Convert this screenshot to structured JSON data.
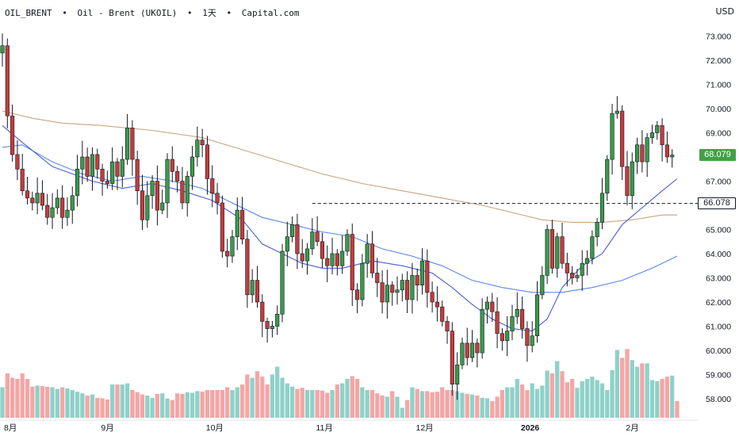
{
  "header": {
    "symbol": "OIL_BRENT",
    "name": "Oil - Brent (UKOIL)",
    "interval": "1天",
    "source": "Capital.com",
    "separator": "•"
  },
  "currency": "USD",
  "colors": {
    "up_candle": "#3a9a4a",
    "down_candle": "#c43c3c",
    "up_volume": "#8fd1c8",
    "down_volume": "#f4a6a6",
    "ma_fast": "#4a5fd0",
    "ma_mid": "#5a88e6",
    "ma_slow": "#c9a47e",
    "last_price_tag": "#43a047",
    "level_tag": "#131722"
  },
  "last_price_label": "68.079",
  "level_label": "66.078",
  "chart_data": {
    "type": "candlestick",
    "ylim": [
      57.6,
      73.3
    ],
    "y_ticks": [
      "73.000",
      "72.000",
      "71.000",
      "70.000",
      "69.000",
      "68.000",
      "67.000",
      "66.000",
      "65.000",
      "64.000",
      "63.000",
      "62.000",
      "61.000",
      "60.000",
      "59.000",
      "58.000"
    ],
    "x_labels": [
      {
        "label": "8月",
        "index": 0
      },
      {
        "label": "9月",
        "index": 21
      },
      {
        "label": "10月",
        "index": 42
      },
      {
        "label": "11月",
        "index": 64
      },
      {
        "label": "12月",
        "index": 84
      },
      {
        "label": "2026",
        "index": 105
      },
      {
        "label": "2月",
        "index": 126
      }
    ],
    "level_line": 66.078,
    "last_price": 68.079,
    "closes": [
      72.6,
      69.7,
      68.1,
      67.5,
      66.6,
      66.3,
      66.1,
      66.5,
      66.0,
      65.5,
      65.9,
      66.3,
      65.5,
      65.8,
      66.4,
      67.5,
      68.0,
      67.2,
      68.1,
      67.5,
      67.0,
      66.9,
      67.8,
      67.2,
      67.9,
      69.2,
      67.9,
      66.6,
      65.4,
      66.4,
      67.0,
      65.8,
      66.1,
      67.9,
      67.4,
      67.0,
      66.1,
      67.2,
      68.0,
      68.7,
      68.5,
      67.1,
      66.5,
      66.1,
      64.1,
      63.9,
      64.7,
      65.8,
      64.6,
      62.3,
      62.9,
      62.0,
      61.2,
      60.9,
      61.0,
      61.5,
      64.1,
      64.7,
      65.2,
      64.0,
      63.7,
      64.2,
      64.9,
      64.5,
      63.8,
      63.5,
      64.0,
      63.5,
      64.1,
      64.8,
      62.5,
      62.1,
      63.6,
      64.4,
      63.2,
      62.8,
      62.0,
      62.7,
      62.4,
      62.5,
      62.9,
      62.1,
      63.1,
      62.7,
      63.7,
      62.4,
      62.0,
      61.8,
      61.2,
      60.8,
      58.6,
      59.4,
      60.3,
      59.7,
      60.3,
      59.9,
      61.7,
      62.0,
      61.6,
      60.7,
      60.4,
      60.8,
      61.4,
      61.7,
      60.9,
      60.2,
      60.6,
      62.3,
      63.1,
      65.0,
      63.4,
      64.7,
      63.6,
      63.2,
      63.0,
      63.1,
      63.6,
      63.8,
      64.7,
      65.3,
      66.5,
      67.9,
      69.8,
      69.9,
      67.6,
      66.4,
      67.8,
      68.5,
      67.8,
      68.8,
      69.0,
      69.3,
      68.5,
      68.0,
      68.079
    ],
    "volume_relative": [
      0.55,
      0.8,
      0.72,
      0.7,
      0.8,
      0.7,
      0.56,
      0.58,
      0.57,
      0.56,
      0.55,
      0.52,
      0.55,
      0.53,
      0.5,
      0.47,
      0.44,
      0.4,
      0.42,
      0.36,
      0.35,
      0.33,
      0.6,
      0.6,
      0.6,
      0.62,
      0.5,
      0.46,
      0.42,
      0.4,
      0.36,
      0.43,
      0.44,
      0.35,
      0.32,
      0.44,
      0.43,
      0.46,
      0.45,
      0.48,
      0.47,
      0.5,
      0.5,
      0.5,
      0.5,
      0.55,
      0.5,
      0.55,
      0.6,
      0.78,
      0.72,
      0.84,
      0.74,
      0.6,
      0.78,
      0.92,
      0.72,
      0.62,
      0.56,
      0.52,
      0.54,
      0.5,
      0.5,
      0.5,
      0.49,
      0.45,
      0.5,
      0.6,
      0.62,
      0.7,
      0.75,
      0.7,
      0.55,
      0.5,
      0.5,
      0.44,
      0.4,
      0.38,
      0.48,
      0.38,
      0.18,
      0.32,
      0.55,
      0.52,
      0.48,
      0.48,
      0.46,
      0.47,
      0.55,
      0.5,
      0.5,
      0.48,
      0.45,
      0.43,
      0.42,
      0.4,
      0.36,
      0.35,
      0.3,
      0.38,
      0.5,
      0.55,
      0.55,
      0.7,
      0.6,
      0.5,
      0.62,
      0.52,
      0.58,
      0.85,
      0.8,
      1.02,
      0.84,
      0.64,
      0.7,
      0.54,
      0.66,
      0.7,
      0.74,
      0.68,
      0.62,
      0.5,
      0.86,
      1.22,
      1.08,
      1.24,
      1.04,
      0.92,
      0.98,
      0.98,
      0.68,
      0.66,
      0.7,
      0.74,
      0.76,
      0.3
    ],
    "ma_fast": [
      [
        0,
        69.3
      ],
      [
        4,
        68.6
      ],
      [
        10,
        67.6
      ],
      [
        18,
        67.0
      ],
      [
        24,
        66.7
      ],
      [
        30,
        66.9
      ],
      [
        36,
        66.6
      ],
      [
        42,
        66.2
      ],
      [
        48,
        65.4
      ],
      [
        52,
        64.4
      ],
      [
        56,
        64.0
      ],
      [
        60,
        63.6
      ],
      [
        64,
        63.4
      ],
      [
        68,
        63.4
      ],
      [
        74,
        63.7
      ],
      [
        80,
        63.5
      ],
      [
        86,
        63.2
      ],
      [
        90,
        62.6
      ],
      [
        94,
        61.9
      ],
      [
        98,
        61.3
      ],
      [
        102,
        60.9
      ],
      [
        106,
        60.8
      ],
      [
        109,
        61.3
      ],
      [
        112,
        62.6
      ],
      [
        116,
        63.5
      ],
      [
        120,
        64.0
      ],
      [
        124,
        65.2
      ],
      [
        128,
        65.9
      ],
      [
        132,
        66.6
      ],
      [
        135,
        67.1
      ]
    ],
    "ma_mid": [
      [
        0,
        68.4
      ],
      [
        4,
        68.5
      ],
      [
        10,
        67.8
      ],
      [
        16,
        67.3
      ],
      [
        22,
        67.0
      ],
      [
        28,
        67.2
      ],
      [
        34,
        67.0
      ],
      [
        40,
        66.7
      ],
      [
        46,
        66.1
      ],
      [
        52,
        65.5
      ],
      [
        58,
        65.2
      ],
      [
        64,
        64.9
      ],
      [
        70,
        64.7
      ],
      [
        76,
        64.2
      ],
      [
        82,
        63.9
      ],
      [
        88,
        63.5
      ],
      [
        94,
        62.9
      ],
      [
        100,
        62.6
      ],
      [
        106,
        62.4
      ],
      [
        112,
        62.4
      ],
      [
        118,
        62.6
      ],
      [
        124,
        62.9
      ],
      [
        130,
        63.4
      ],
      [
        135,
        63.9
      ]
    ],
    "ma_slow": [
      [
        0,
        69.9
      ],
      [
        6,
        69.6
      ],
      [
        12,
        69.4
      ],
      [
        20,
        69.3
      ],
      [
        30,
        69.1
      ],
      [
        40,
        68.8
      ],
      [
        48,
        68.3
      ],
      [
        56,
        67.8
      ],
      [
        64,
        67.3
      ],
      [
        72,
        66.9
      ],
      [
        80,
        66.6
      ],
      [
        88,
        66.3
      ],
      [
        96,
        66.0
      ],
      [
        102,
        65.7
      ],
      [
        108,
        65.4
      ],
      [
        114,
        65.3
      ],
      [
        120,
        65.3
      ],
      [
        126,
        65.4
      ],
      [
        132,
        65.6
      ],
      [
        135,
        65.6
      ]
    ]
  }
}
